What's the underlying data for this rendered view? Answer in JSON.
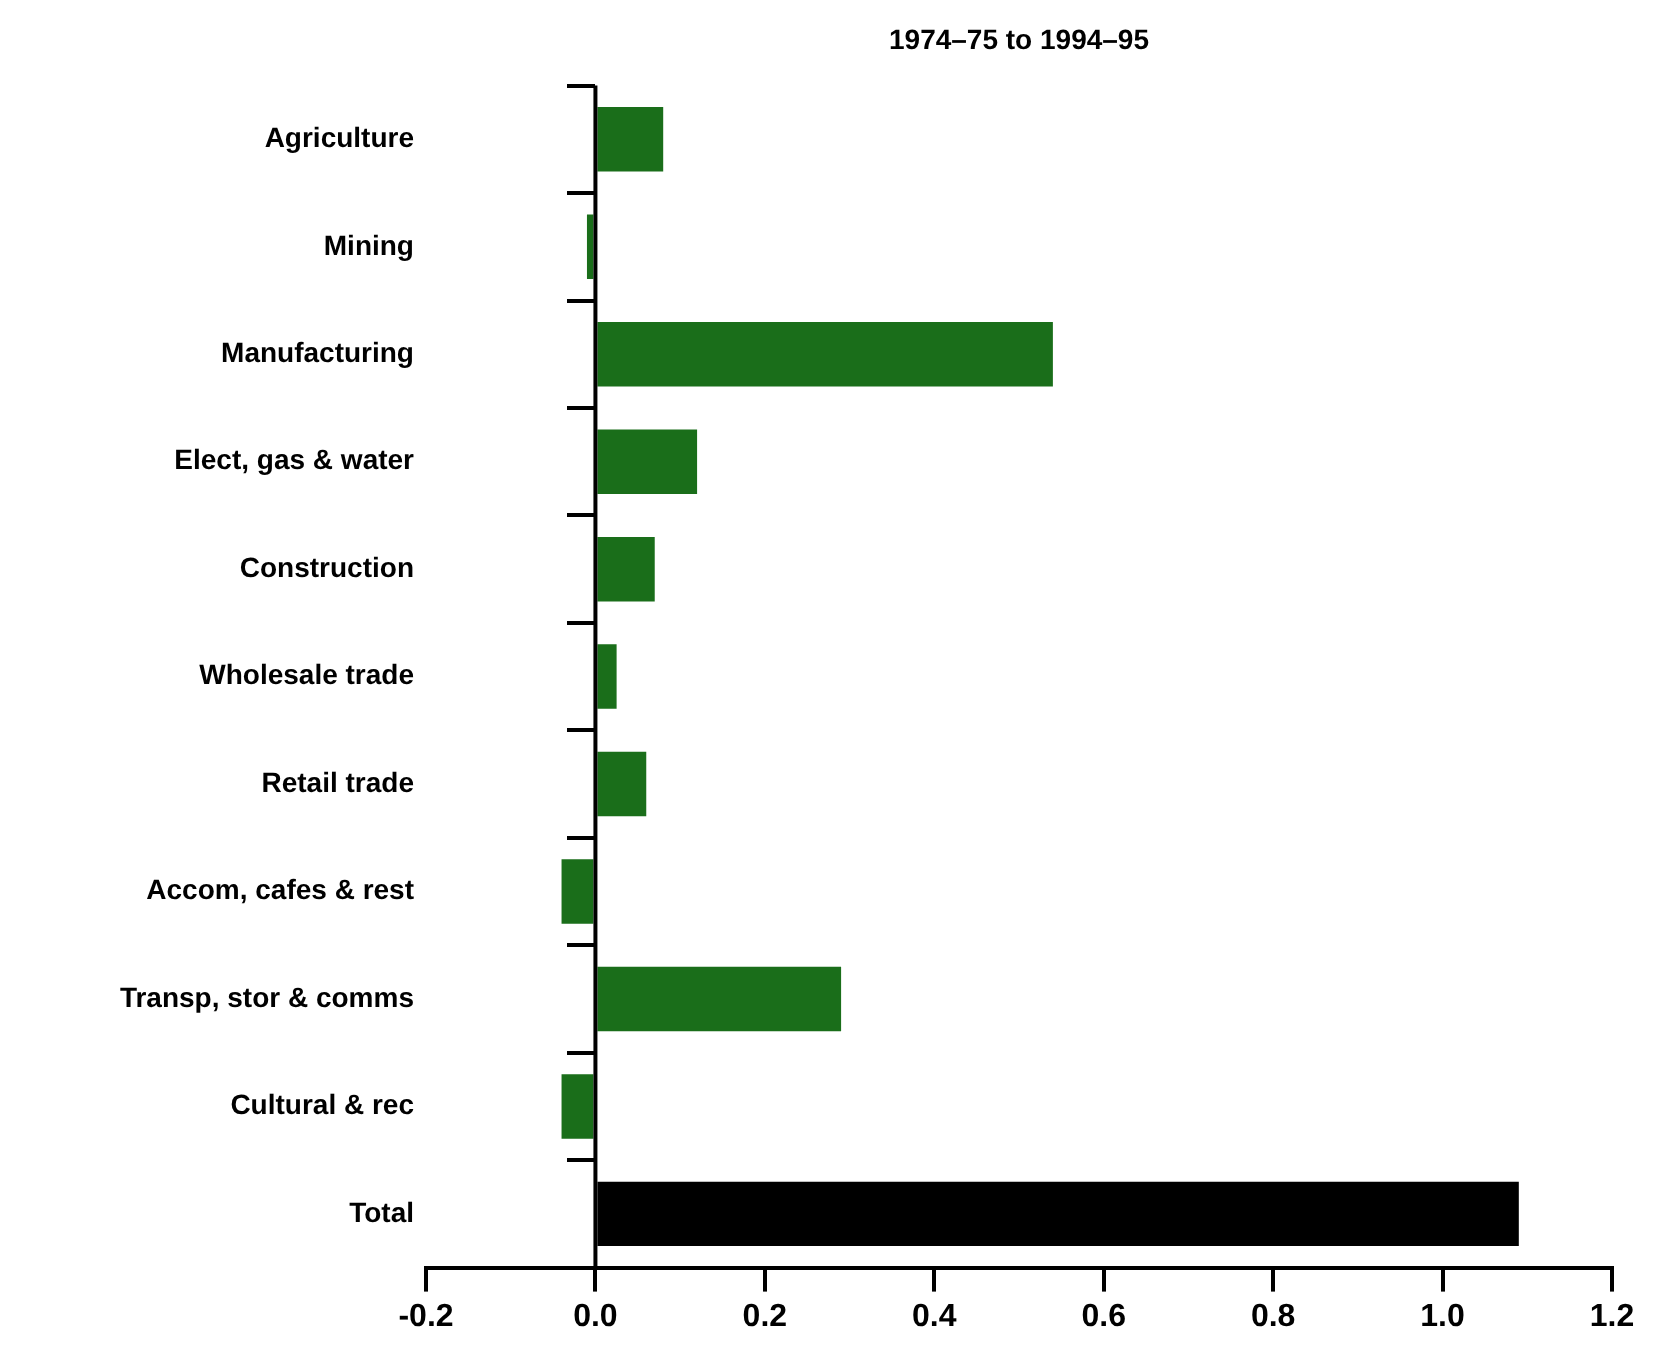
{
  "chart_data": {
    "type": "bar",
    "orientation": "horizontal",
    "title": "1974–75 to 1994–95",
    "categories": [
      "Agriculture",
      "Mining",
      "Manufacturing",
      "Elect, gas & water",
      "Construction",
      "Wholesale trade",
      "Retail trade",
      "Accom, cafes & rest",
      "Transp, stor & comms",
      "Cultural & rec",
      "Total"
    ],
    "values": [
      0.08,
      -0.01,
      0.54,
      0.12,
      0.07,
      0.025,
      0.06,
      -0.04,
      0.29,
      -0.04,
      1.09
    ],
    "colors": [
      "#1a6e1a",
      "#1a6e1a",
      "#1a6e1a",
      "#1a6e1a",
      "#1a6e1a",
      "#1a6e1a",
      "#1a6e1a",
      "#1a6e1a",
      "#1a6e1a",
      "#1a6e1a",
      "#000000"
    ],
    "xlim": [
      -0.2,
      1.2
    ],
    "xticks": [
      -0.2,
      {
        "value": 0,
        "label": "0.0"
      },
      0.2,
      0.4,
      0.6,
      0.8,
      {
        "value": 1,
        "label": "1.0"
      },
      1.2
    ],
    "ref_lines": [
      {
        "axis": "x",
        "value": 0,
        "color": "#000000"
      }
    ],
    "grid": false,
    "legend": false
  }
}
